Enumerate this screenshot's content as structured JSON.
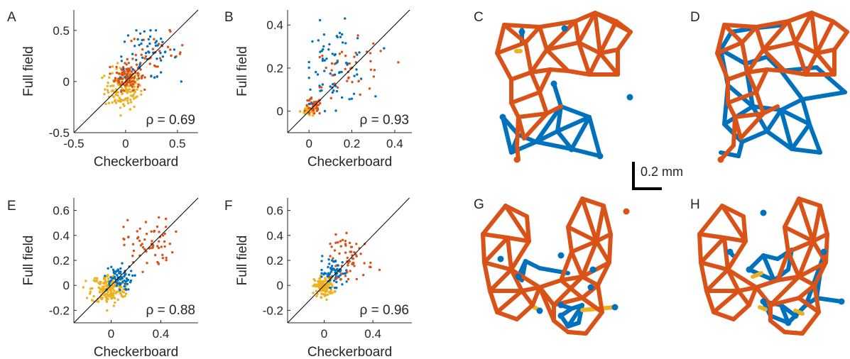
{
  "colors": {
    "orange": "#D95319",
    "blue": "#0072BD",
    "yellow": "#EDB120",
    "axis": "#262626"
  },
  "scale_bar_label": "0.2 mm",
  "chart_data": [
    {
      "panel": "A",
      "type": "scatter",
      "xlabel": "Checkerboard",
      "ylabel": "Full field",
      "annotation": "ρ = 0.69",
      "xlim": [
        -0.5,
        0.7
      ],
      "ylim": [
        -0.5,
        0.7
      ],
      "xticks": [
        -0.5,
        0,
        0.5
      ],
      "xtick_labels": [
        "-0.5",
        "0",
        "0.5"
      ],
      "yticks": [
        -0.5,
        0,
        0.5
      ],
      "ytick_labels": [
        "-0.5",
        "0",
        "0.5"
      ],
      "identity_line": true,
      "legend": "none",
      "grid": false,
      "clusters": [
        {
          "color": "yellow",
          "n": 150,
          "cx": -0.02,
          "cy": -0.07,
          "sx": 0.09,
          "sy": 0.1,
          "xr": [
            -0.45,
            0.15
          ],
          "yr": [
            -0.4,
            0.2
          ]
        },
        {
          "color": "orange",
          "n": 110,
          "cx": 0.02,
          "cy": 0.06,
          "sx": 0.06,
          "sy": 0.07,
          "xr": [
            -0.15,
            0.25
          ],
          "yr": [
            -0.1,
            0.3
          ]
        },
        {
          "color": "orange",
          "n": 35,
          "cx": 0.3,
          "cy": 0.27,
          "sx": 0.14,
          "sy": 0.1,
          "xr": [
            0.05,
            0.6
          ],
          "yr": [
            0.05,
            0.55
          ]
        },
        {
          "color": "blue",
          "n": 55,
          "cx": 0.2,
          "cy": 0.28,
          "sx": 0.15,
          "sy": 0.13,
          "xr": [
            -0.05,
            0.6
          ],
          "yr": [
            0.0,
            0.5
          ]
        }
      ]
    },
    {
      "panel": "B",
      "type": "scatter",
      "xlabel": "Checkerboard",
      "ylabel": "Full field",
      "annotation": "ρ = 0.93",
      "xlim": [
        -0.1,
        0.48
      ],
      "ylim": [
        -0.1,
        0.47
      ],
      "xticks": [
        0,
        0.2,
        0.4
      ],
      "xtick_labels": [
        "0",
        "0.2",
        "0.4"
      ],
      "yticks": [
        0,
        0.2,
        0.4
      ],
      "ytick_labels": [
        "0",
        "0.2",
        "0.4"
      ],
      "identity_line": true,
      "legend": "none",
      "grid": false,
      "clusters": [
        {
          "color": "yellow",
          "n": 35,
          "cx": 0.0,
          "cy": 0.0,
          "sx": 0.02,
          "sy": 0.012,
          "xr": [
            -0.07,
            0.04
          ],
          "yr": [
            -0.02,
            0.02
          ]
        },
        {
          "color": "orange",
          "n": 40,
          "cx": 0.02,
          "cy": 0.02,
          "sx": 0.02,
          "sy": 0.02,
          "xr": [
            -0.02,
            0.08
          ],
          "yr": [
            -0.01,
            0.08
          ]
        },
        {
          "color": "orange",
          "n": 45,
          "cx": 0.2,
          "cy": 0.18,
          "sx": 0.09,
          "sy": 0.07,
          "xr": [
            0.05,
            0.42
          ],
          "yr": [
            0.05,
            0.4
          ]
        },
        {
          "color": "blue",
          "n": 70,
          "cx": 0.12,
          "cy": 0.22,
          "sx": 0.08,
          "sy": 0.09,
          "xr": [
            0.0,
            0.35
          ],
          "yr": [
            0.0,
            0.43
          ]
        }
      ]
    },
    {
      "panel": "E",
      "type": "scatter",
      "xlabel": "Checkerboard",
      "ylabel": "Full field",
      "annotation": "ρ = 0.88",
      "xlim": [
        -0.3,
        0.7
      ],
      "ylim": [
        -0.3,
        0.7
      ],
      "xticks": [
        0,
        0.4
      ],
      "xtick_labels": [
        "0",
        "0.4"
      ],
      "yticks": [
        -0.2,
        0,
        0.2,
        0.4,
        0.6
      ],
      "ytick_labels": [
        "-0.2",
        "0",
        "0.2",
        "0.4",
        "0.6"
      ],
      "identity_line": true,
      "legend": "none",
      "grid": false,
      "clusters": [
        {
          "color": "yellow",
          "n": 180,
          "cx": -0.02,
          "cy": -0.03,
          "sx": 0.07,
          "sy": 0.06,
          "xr": [
            -0.27,
            0.12
          ],
          "yr": [
            -0.25,
            0.12
          ]
        },
        {
          "color": "blue",
          "n": 70,
          "cx": 0.05,
          "cy": 0.06,
          "sx": 0.06,
          "sy": 0.05,
          "xr": [
            -0.05,
            0.25
          ],
          "yr": [
            -0.05,
            0.18
          ]
        },
        {
          "color": "orange",
          "n": 65,
          "cx": 0.3,
          "cy": 0.33,
          "sx": 0.1,
          "sy": 0.1,
          "xr": [
            0.1,
            0.6
          ],
          "yr": [
            0.1,
            0.68
          ]
        }
      ]
    },
    {
      "panel": "F",
      "type": "scatter",
      "xlabel": "Checkerboard",
      "ylabel": "Full field",
      "annotation": "ρ = 0.96",
      "xlim": [
        -0.3,
        0.72
      ],
      "ylim": [
        -0.3,
        0.7
      ],
      "xticks": [
        0,
        0.4
      ],
      "xtick_labels": [
        "0",
        "0.4"
      ],
      "yticks": [
        -0.2,
        0,
        0.2,
        0.4,
        0.6
      ],
      "ytick_labels": [
        "-0.2",
        "0",
        "0.2",
        "0.4",
        "0.6"
      ],
      "identity_line": true,
      "legend": "none",
      "grid": false,
      "clusters": [
        {
          "color": "yellow",
          "n": 120,
          "cx": 0.0,
          "cy": -0.01,
          "sx": 0.04,
          "sy": 0.04,
          "xr": [
            -0.17,
            0.1
          ],
          "yr": [
            -0.15,
            0.1
          ]
        },
        {
          "color": "blue",
          "n": 70,
          "cx": 0.08,
          "cy": 0.1,
          "sx": 0.06,
          "sy": 0.06,
          "xr": [
            -0.02,
            0.3
          ],
          "yr": [
            -0.02,
            0.3
          ]
        },
        {
          "color": "orange",
          "n": 60,
          "cx": 0.22,
          "cy": 0.22,
          "sx": 0.09,
          "sy": 0.09,
          "xr": [
            0.05,
            0.5
          ],
          "yr": [
            0.05,
            0.55
          ]
        }
      ]
    }
  ],
  "network_panels": [
    "C",
    "D",
    "G",
    "H"
  ]
}
